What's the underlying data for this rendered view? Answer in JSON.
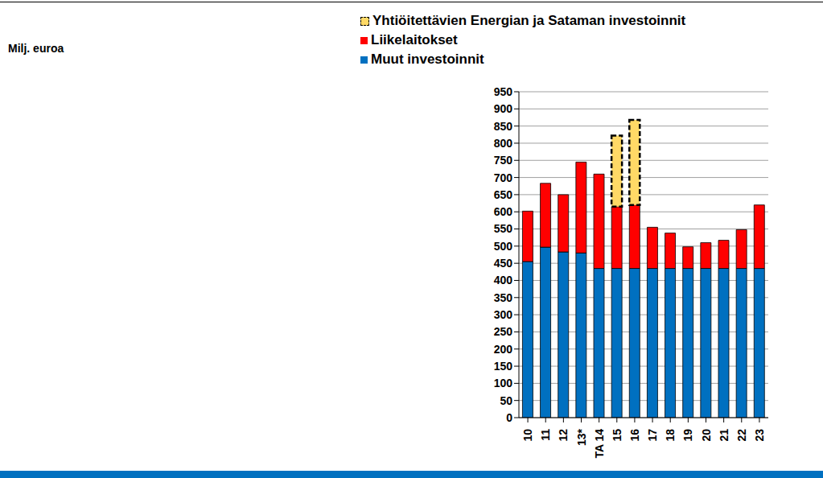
{
  "chart_data": {
    "type": "bar",
    "y_label": "Milj. euroa",
    "categories": [
      "10",
      "11",
      "12",
      "13*",
      "TA 14",
      "15",
      "16",
      "17",
      "18",
      "19",
      "20",
      "21",
      "22",
      "23"
    ],
    "series": [
      {
        "name": "Muut investoinnit",
        "color": "#0070c0",
        "values": [
          455,
          497,
          483,
          480,
          435,
          435,
          435,
          435,
          435,
          435,
          435,
          435,
          435,
          435
        ]
      },
      {
        "name": "Liikelaitokset",
        "color": "#ff0000",
        "values": [
          147,
          186,
          167,
          265,
          275,
          180,
          185,
          120,
          103,
          63,
          75,
          82,
          113,
          185
        ]
      },
      {
        "name": "Yhtiöitettävien Energian ja Sataman investoinnit",
        "color": "#ffd966",
        "line_style": "dashed",
        "values": [
          null,
          null,
          null,
          null,
          null,
          207,
          248,
          null,
          null,
          null,
          null,
          null,
          null,
          null
        ]
      }
    ],
    "ylim": [
      0,
      950
    ],
    "yticks": [
      0,
      50,
      100,
      150,
      200,
      250,
      300,
      350,
      400,
      450,
      500,
      550,
      600,
      650,
      700,
      750,
      800,
      850,
      900,
      950
    ],
    "grid": true,
    "stacked": true,
    "legend": "top-right"
  }
}
